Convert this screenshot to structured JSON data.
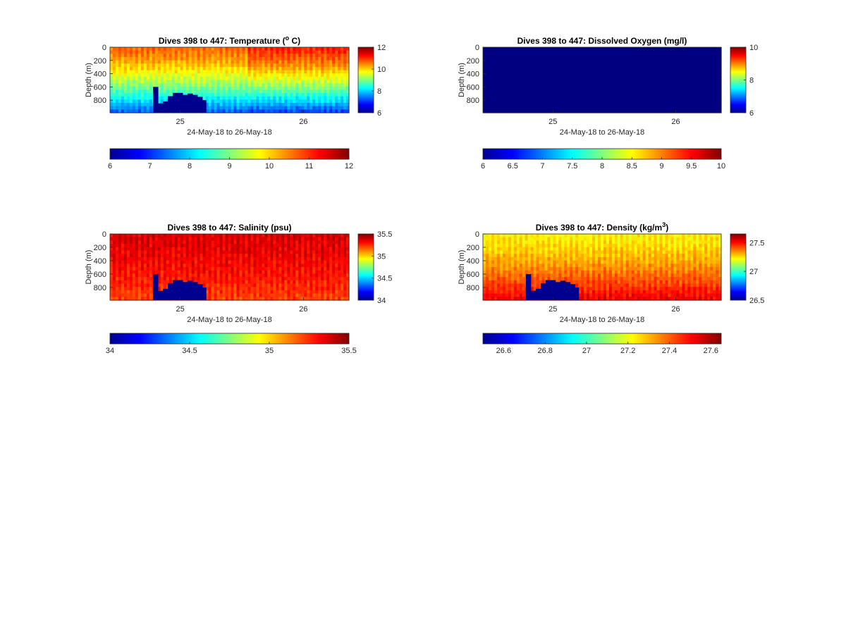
{
  "chart_data": [
    {
      "type": "heatmap",
      "title": "Dives 398 to 447: Temperature (",
      "title_sup": "o",
      "title_end": " C)",
      "xlabel": "24-May-18 to 26-May-18",
      "ylabel": "Depth (m)",
      "xticks": [
        "25",
        "26"
      ],
      "x_tick_values": [
        25,
        26
      ],
      "xlim": [
        24.43,
        26.37
      ],
      "yticks": [
        "0",
        "200",
        "400",
        "600",
        "800"
      ],
      "y_tick_values": [
        0,
        200,
        400,
        600,
        800
      ],
      "ylim": [
        0,
        990
      ],
      "colorbar_right": {
        "ticks": [
          "12",
          "10",
          "8",
          "6"
        ],
        "tick_values": [
          12,
          10,
          8,
          6
        ],
        "range": [
          6,
          12
        ]
      },
      "colorbar_bottom": {
        "ticks": [
          "6",
          "7",
          "8",
          "9",
          "10",
          "11",
          "12"
        ],
        "tick_values": [
          6,
          7,
          8,
          9,
          10,
          11,
          12
        ],
        "range": [
          6,
          12
        ]
      },
      "profile": {
        "surface": 10.6,
        "bottom": 7.2,
        "warm_region_start": 25.55,
        "warm_region_surface": 11.0,
        "warm_region_bottom": 7.0
      },
      "missing_bottom": [
        {
          "x0": 24.78,
          "x1": 24.82,
          "depth": 600
        },
        {
          "x0": 24.82,
          "x1": 24.86,
          "depth": 850
        },
        {
          "x0": 24.86,
          "x1": 24.9,
          "depth": 820
        },
        {
          "x0": 24.9,
          "x1": 24.94,
          "depth": 740
        },
        {
          "x0": 24.94,
          "x1": 24.98,
          "depth": 690
        },
        {
          "x0": 24.98,
          "x1": 25.02,
          "depth": 690
        },
        {
          "x0": 25.02,
          "x1": 25.06,
          "depth": 720
        },
        {
          "x0": 25.06,
          "x1": 25.1,
          "depth": 700
        },
        {
          "x0": 25.1,
          "x1": 25.14,
          "depth": 720
        },
        {
          "x0": 25.14,
          "x1": 25.18,
          "depth": 750
        },
        {
          "x0": 25.18,
          "x1": 25.21,
          "depth": 800
        }
      ]
    },
    {
      "type": "heatmap",
      "title": "Dives 398 to 447: Dissolved Oxygen (mg/l)",
      "xlabel": "24-May-18 to 26-May-18",
      "ylabel": "Depth (m)",
      "xticks": [
        "25",
        "26"
      ],
      "x_tick_values": [
        25,
        26
      ],
      "xlim": [
        24.43,
        26.37
      ],
      "yticks": [
        "0",
        "200",
        "400",
        "600",
        "800"
      ],
      "y_tick_values": [
        0,
        200,
        400,
        600,
        800
      ],
      "ylim": [
        0,
        990
      ],
      "colorbar_right": {
        "ticks": [
          "10",
          "8",
          "6"
        ],
        "tick_values": [
          10,
          8,
          6
        ],
        "range": [
          6,
          10
        ]
      },
      "colorbar_bottom": {
        "ticks": [
          "6",
          "6.5",
          "7",
          "7.5",
          "8",
          "8.5",
          "9",
          "9.5",
          "10"
        ],
        "tick_values": [
          6,
          6.5,
          7,
          7.5,
          8,
          8.5,
          9,
          9.5,
          10
        ],
        "range": [
          6,
          10
        ]
      },
      "uniform_value": 6
    },
    {
      "type": "heatmap",
      "title": "Dives 398 to 447: Salinity (psu)",
      "xlabel": "24-May-18 to 26-May-18",
      "ylabel": "Depth (m)",
      "xticks": [
        "25",
        "26"
      ],
      "x_tick_values": [
        25,
        26
      ],
      "xlim": [
        24.43,
        26.37
      ],
      "yticks": [
        "0",
        "200",
        "400",
        "600",
        "800"
      ],
      "y_tick_values": [
        0,
        200,
        400,
        600,
        800
      ],
      "ylim": [
        0,
        990
      ],
      "colorbar_right": {
        "ticks": [
          "35.5",
          "35",
          "34.5",
          "34"
        ],
        "tick_values": [
          35.5,
          35,
          34.5,
          34
        ],
        "range": [
          34,
          35.5
        ]
      },
      "colorbar_bottom": {
        "ticks": [
          "34",
          "34.5",
          "35",
          "35.5"
        ],
        "tick_values": [
          34,
          34.5,
          35,
          35.5
        ],
        "range": [
          34,
          35.5
        ]
      },
      "profile": {
        "surface": 35.35,
        "bottom": 35.2
      },
      "missing_bottom": [
        {
          "x0": 24.78,
          "x1": 24.82,
          "depth": 600
        },
        {
          "x0": 24.82,
          "x1": 24.86,
          "depth": 850
        },
        {
          "x0": 24.86,
          "x1": 24.9,
          "depth": 820
        },
        {
          "x0": 24.9,
          "x1": 24.94,
          "depth": 740
        },
        {
          "x0": 24.94,
          "x1": 24.98,
          "depth": 690
        },
        {
          "x0": 24.98,
          "x1": 25.02,
          "depth": 690
        },
        {
          "x0": 25.02,
          "x1": 25.06,
          "depth": 720
        },
        {
          "x0": 25.06,
          "x1": 25.1,
          "depth": 700
        },
        {
          "x0": 25.1,
          "x1": 25.14,
          "depth": 720
        },
        {
          "x0": 25.14,
          "x1": 25.18,
          "depth": 750
        },
        {
          "x0": 25.18,
          "x1": 25.21,
          "depth": 800
        }
      ]
    },
    {
      "type": "heatmap",
      "title": "Dives 398 to 447: Density (kg/m",
      "title_sup": "3",
      "title_end": ")",
      "xlabel": "24-May-18 to 26-May-18",
      "ylabel": "Depth (m)",
      "xticks": [
        "25",
        "26"
      ],
      "x_tick_values": [
        25,
        26
      ],
      "xlim": [
        24.43,
        26.37
      ],
      "yticks": [
        "0",
        "200",
        "400",
        "600",
        "800"
      ],
      "y_tick_values": [
        0,
        200,
        400,
        600,
        800
      ],
      "ylim": [
        0,
        990
      ],
      "colorbar_right": {
        "ticks": [
          "27.5",
          "27",
          "26.5"
        ],
        "tick_values": [
          27.5,
          27,
          26.5
        ],
        "range": [
          26.5,
          27.65
        ]
      },
      "colorbar_bottom": {
        "ticks": [
          "26.6",
          "26.8",
          "27",
          "27.2",
          "27.4",
          "27.6"
        ],
        "tick_values": [
          26.6,
          26.8,
          27,
          27.2,
          27.4,
          27.6
        ],
        "range": [
          26.5,
          27.65
        ]
      },
      "profile": {
        "surface": 27.22,
        "bottom": 27.52
      },
      "missing_bottom": [
        {
          "x0": 24.78,
          "x1": 24.82,
          "depth": 600
        },
        {
          "x0": 24.82,
          "x1": 24.86,
          "depth": 850
        },
        {
          "x0": 24.86,
          "x1": 24.9,
          "depth": 820
        },
        {
          "x0": 24.9,
          "x1": 24.94,
          "depth": 740
        },
        {
          "x0": 24.94,
          "x1": 24.98,
          "depth": 690
        },
        {
          "x0": 24.98,
          "x1": 25.02,
          "depth": 690
        },
        {
          "x0": 25.02,
          "x1": 25.06,
          "depth": 720
        },
        {
          "x0": 25.06,
          "x1": 25.1,
          "depth": 700
        },
        {
          "x0": 25.1,
          "x1": 25.14,
          "depth": 720
        },
        {
          "x0": 25.14,
          "x1": 25.18,
          "depth": 750
        },
        {
          "x0": 25.18,
          "x1": 25.21,
          "depth": 800
        }
      ]
    }
  ]
}
